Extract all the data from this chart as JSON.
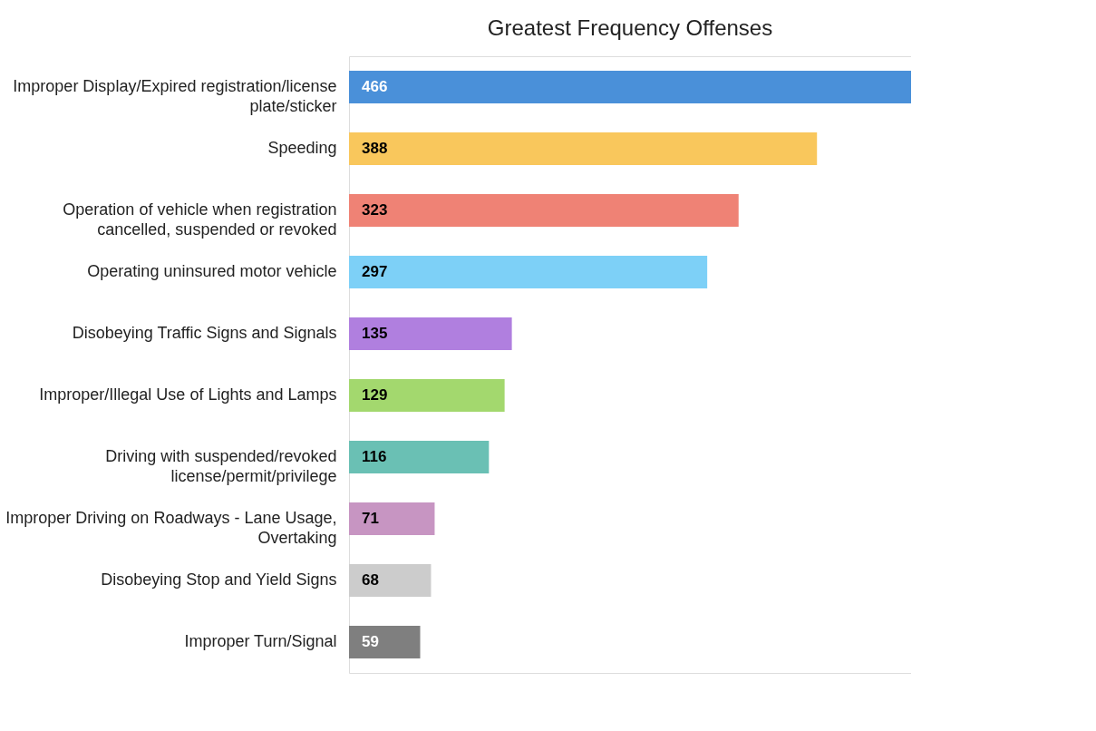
{
  "chart_data": {
    "type": "bar",
    "orientation": "horizontal",
    "title": "Greatest Frequency Offenses",
    "categories": [
      "Improper Display/Expired registration/license plate/sticker",
      "Speeding",
      "Operation of vehicle when registration cancelled, suspended or revoked",
      "Operating uninsured motor vehicle",
      "Disobeying Traffic Signs and Signals",
      "Improper/Illegal Use of Lights and Lamps",
      "Driving with suspended/revoked license/permit/privilege",
      "Improper Driving on Roadways - Lane Usage, Overtaking",
      "Disobeying Stop and Yield Signs",
      "Improper Turn/Signal"
    ],
    "values": [
      466,
      388,
      323,
      297,
      135,
      129,
      116,
      71,
      68,
      59
    ],
    "colors": [
      "#4a90d9",
      "#f9c75c",
      "#ef8275",
      "#7dd0f7",
      "#b07fdf",
      "#a3d86e",
      "#6ac0b4",
      "#c795c2",
      "#cccccc",
      "#7f7f7f"
    ],
    "data_labels": true
  }
}
